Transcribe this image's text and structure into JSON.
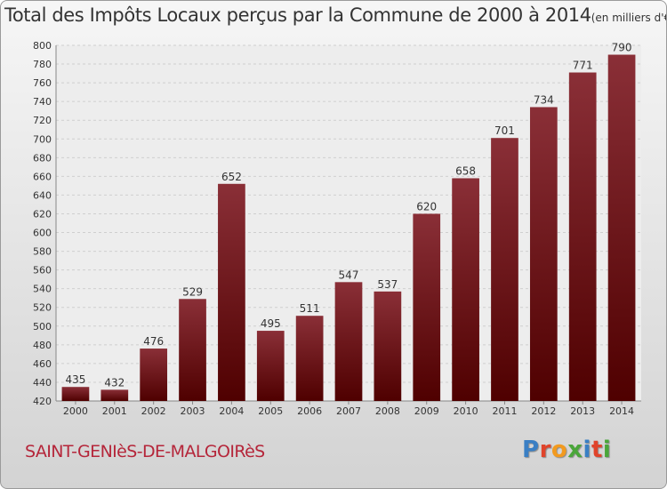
{
  "header": {
    "title": "Total des Impôts Locaux perçus par la Commune de 2000 à 2014",
    "unit": "(en milliers d'€)"
  },
  "footer": {
    "commune": "SAINT-GENIèS-DE-MALGOIRèS",
    "logo": "Proxiti"
  },
  "colors": {
    "bar_top": "#8a2f37",
    "bar_bottom": "#4f0000",
    "commune_text": "#b5263a",
    "logo_letters": [
      "#3a7fc4",
      "#e0442b",
      "#f29a1f",
      "#4aa63a",
      "#3a7fc4",
      "#e0442b",
      "#4aa63a"
    ]
  },
  "chart_data": {
    "type": "bar",
    "categories": [
      "2000",
      "2001",
      "2002",
      "2003",
      "2004",
      "2005",
      "2006",
      "2007",
      "2008",
      "2009",
      "2010",
      "2011",
      "2012",
      "2013",
      "2014"
    ],
    "values": [
      435,
      432,
      476,
      529,
      652,
      495,
      511,
      547,
      537,
      620,
      658,
      701,
      734,
      771,
      790
    ],
    "ylim": [
      420,
      800
    ],
    "yticks": [
      420,
      440,
      460,
      480,
      500,
      520,
      540,
      560,
      580,
      600,
      620,
      640,
      660,
      680,
      700,
      720,
      740,
      760,
      780,
      800
    ],
    "grid": true,
    "legend": "none"
  }
}
